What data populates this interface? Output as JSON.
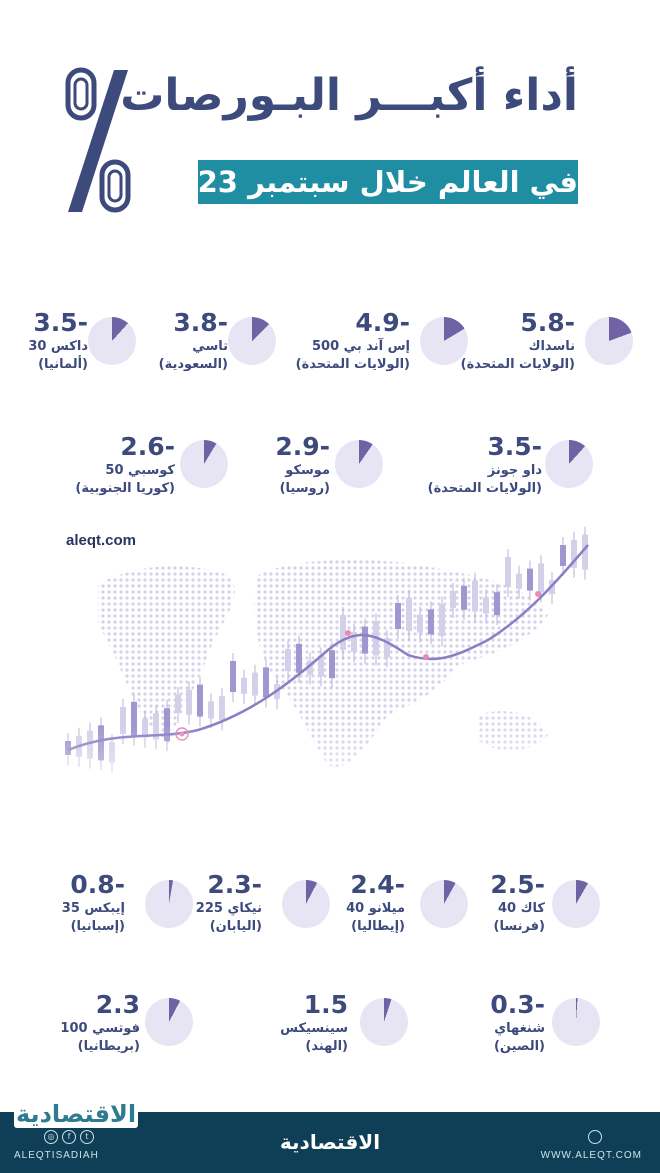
{
  "header": {
    "title": "أداء أكبـــر البـورصات",
    "subtitle": "في العالم خلال سبتمبر 2023"
  },
  "site": "aleqt.com",
  "colors": {
    "accent": "#1f8ea2",
    "slice": "#6f63a6",
    "pie_light": "#e7e4f3",
    "footer": "#0e3f57"
  },
  "exchanges": [
    {
      "value": "5.8-",
      "name": "ناسداك",
      "country": "(الولايات المتحدة)",
      "change": -5.8
    },
    {
      "value": "4.9-",
      "name": "إس آند بي 500",
      "country": "(الولايات المتحدة)",
      "change": -4.9
    },
    {
      "value": "3.8-",
      "name": "تاسي",
      "country": "(السعودية)",
      "change": -3.8
    },
    {
      "value": "3.5-",
      "name": "داكس 30",
      "country": "(ألمانيا)",
      "change": -3.5
    },
    {
      "value": "3.5-",
      "name": "داو جونز",
      "country": "(الولايات المتحدة)",
      "change": -3.5
    },
    {
      "value": "2.9-",
      "name": "موسكو",
      "country": "(روسيا)",
      "change": -2.9
    },
    {
      "value": "2.6-",
      "name": "كوسبي 50",
      "country": "(كوريا الجنوبية)",
      "change": -2.6
    },
    {
      "value": "2.5-",
      "name": "كاك 40",
      "country": "(فرنسا)",
      "change": -2.5
    },
    {
      "value": "2.4-",
      "name": "ميلانو 40",
      "country": "(إيطاليا)",
      "change": -2.4
    },
    {
      "value": "2.3-",
      "name": "نيكاي 225",
      "country": "(اليابان)",
      "change": -2.3
    },
    {
      "value": "0.8-",
      "name": "إيبكس 35",
      "country": "(إسبانيا)",
      "change": -0.8
    },
    {
      "value": "0.3-",
      "name": "شنغهاي",
      "country": "(الصين)",
      "change": -0.3
    },
    {
      "value": "1.5",
      "name": "سينسيكس",
      "country": "(الهند)",
      "change": 1.5
    },
    {
      "value": "2.3",
      "name": "فوتسي 100",
      "country": "(بريطانيا)",
      "change": 2.3
    }
  ],
  "footer": {
    "logo": "الاقتصادية",
    "handle": "ALEQTISADIAH",
    "url": "WWW.ALEQT.COM"
  }
}
